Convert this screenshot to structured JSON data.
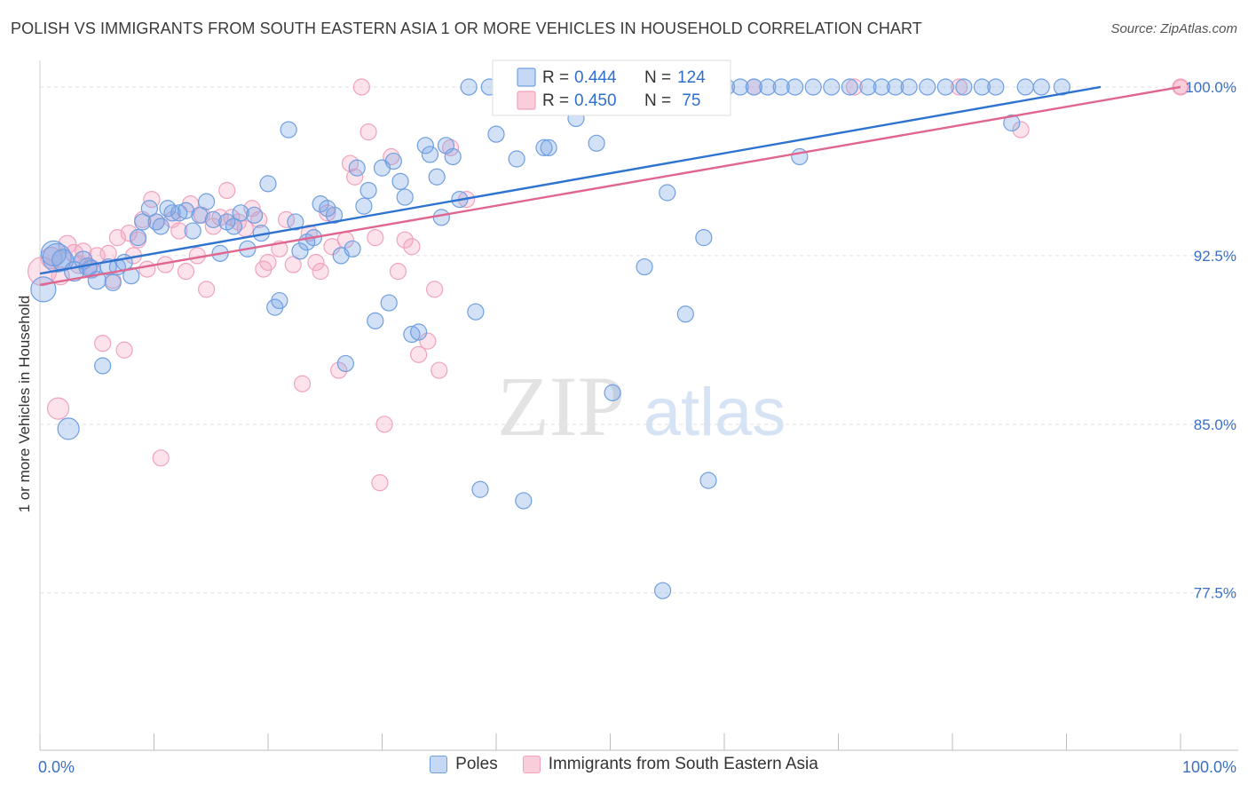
{
  "header": {
    "title": "POLISH VS IMMIGRANTS FROM SOUTH EASTERN ASIA 1 OR MORE VEHICLES IN HOUSEHOLD CORRELATION CHART",
    "source": "Source: ZipAtlas.com"
  },
  "watermark": {
    "zip": "ZIP",
    "atlas": "atlas"
  },
  "chart_data": {
    "type": "scatter",
    "title": "POLISH VS IMMIGRANTS FROM SOUTH EASTERN ASIA 1 OR MORE VEHICLES IN HOUSEHOLD CORRELATION CHART",
    "xlabel": "",
    "ylabel": "1 or more Vehicles in Household",
    "xlim": [
      0,
      100
    ],
    "ylim": [
      70.5,
      101.5
    ],
    "x_tick_labels": [
      "0.0%",
      "100.0%"
    ],
    "y_ticks": [
      77.5,
      85.0,
      92.5,
      100.0
    ],
    "y_tick_labels": [
      "77.5%",
      "85.0%",
      "92.5%",
      "100.0%"
    ],
    "grid": true,
    "legend_position": "top-center",
    "series": [
      {
        "name": "Poles",
        "color": "#6f9fe0",
        "line_color": "#2f73d0",
        "R": "0.444",
        "N": "124",
        "trend": {
          "x": [
            0,
            93
          ],
          "y": [
            91.7,
            100.0
          ]
        },
        "points": [
          [
            0.3,
            91.0,
            14
          ],
          [
            1.2,
            92.6,
            14
          ],
          [
            1.5,
            92.4,
            16
          ],
          [
            2.0,
            92.3,
            12
          ],
          [
            2.5,
            84.8,
            12
          ],
          [
            3.0,
            91.8,
            11
          ],
          [
            3.8,
            92.3,
            10
          ],
          [
            4.2,
            92.0,
            10
          ],
          [
            4.5,
            91.9,
            10
          ],
          [
            5.0,
            91.4,
            10
          ],
          [
            5.5,
            87.6,
            9
          ],
          [
            6.0,
            92.0,
            9
          ],
          [
            6.4,
            91.3,
            9
          ],
          [
            6.8,
            92.0,
            9
          ],
          [
            7.4,
            92.2,
            9
          ],
          [
            8.0,
            91.6,
            9
          ],
          [
            8.6,
            93.3,
            9
          ],
          [
            9.0,
            94.0,
            9
          ],
          [
            9.6,
            94.6,
            9
          ],
          [
            10.2,
            94.0,
            9
          ],
          [
            10.6,
            93.8,
            9
          ],
          [
            11.2,
            94.6,
            9
          ],
          [
            11.6,
            94.4,
            9
          ],
          [
            12.2,
            94.4,
            9
          ],
          [
            12.8,
            94.5,
            9
          ],
          [
            13.4,
            93.6,
            9
          ],
          [
            14.0,
            94.3,
            9
          ],
          [
            14.6,
            94.9,
            9
          ],
          [
            15.2,
            94.1,
            9
          ],
          [
            15.8,
            92.6,
            9
          ],
          [
            16.4,
            94.0,
            9
          ],
          [
            17.0,
            93.8,
            9
          ],
          [
            17.6,
            94.4,
            9
          ],
          [
            18.2,
            92.8,
            9
          ],
          [
            18.8,
            94.3,
            9
          ],
          [
            19.4,
            93.5,
            9
          ],
          [
            20.0,
            95.7,
            9
          ],
          [
            20.6,
            90.2,
            9
          ],
          [
            21.0,
            90.5,
            9
          ],
          [
            21.8,
            98.1,
            9
          ],
          [
            22.4,
            94.0,
            9
          ],
          [
            22.8,
            92.7,
            9
          ],
          [
            23.4,
            93.1,
            9
          ],
          [
            24.0,
            93.3,
            9
          ],
          [
            24.6,
            94.8,
            9
          ],
          [
            25.2,
            94.6,
            9
          ],
          [
            25.8,
            94.3,
            9
          ],
          [
            26.4,
            92.5,
            9
          ],
          [
            26.8,
            87.7,
            9
          ],
          [
            27.4,
            92.8,
            9
          ],
          [
            27.8,
            96.4,
            9
          ],
          [
            28.4,
            94.7,
            9
          ],
          [
            28.8,
            95.4,
            9
          ],
          [
            29.4,
            89.6,
            9
          ],
          [
            30.0,
            96.4,
            9
          ],
          [
            30.6,
            90.4,
            9
          ],
          [
            31.0,
            96.7,
            9
          ],
          [
            31.6,
            95.8,
            9
          ],
          [
            32.0,
            95.1,
            9
          ],
          [
            32.6,
            89.0,
            9
          ],
          [
            33.2,
            89.1,
            9
          ],
          [
            33.8,
            97.4,
            9
          ],
          [
            34.2,
            97.0,
            9
          ],
          [
            34.8,
            96.0,
            9
          ],
          [
            35.2,
            94.2,
            9
          ],
          [
            35.6,
            97.4,
            9
          ],
          [
            36.2,
            96.9,
            9
          ],
          [
            36.8,
            95.0,
            9
          ],
          [
            37.6,
            100.0,
            9
          ],
          [
            38.2,
            90.0,
            9
          ],
          [
            38.6,
            82.1,
            9
          ],
          [
            39.4,
            100.0,
            9
          ],
          [
            40.0,
            97.9,
            9
          ],
          [
            40.6,
            100.0,
            9
          ],
          [
            41.2,
            100.0,
            9
          ],
          [
            41.8,
            96.8,
            9
          ],
          [
            42.4,
            81.6,
            9
          ],
          [
            43.0,
            99.7,
            9
          ],
          [
            43.6,
            100.0,
            9
          ],
          [
            44.2,
            97.3,
            9
          ],
          [
            44.6,
            97.3,
            9
          ],
          [
            45.2,
            100.0,
            9
          ],
          [
            45.8,
            100.0,
            9
          ],
          [
            46.4,
            100.0,
            9
          ],
          [
            47.0,
            98.6,
            9
          ],
          [
            48.2,
            100.0,
            9
          ],
          [
            48.8,
            97.5,
            9
          ],
          [
            49.4,
            100.0,
            9
          ],
          [
            50.2,
            86.4,
            9
          ],
          [
            51.0,
            100.0,
            9
          ],
          [
            51.8,
            100.0,
            9
          ],
          [
            52.6,
            100.0,
            9
          ],
          [
            53.0,
            92.0,
            9
          ],
          [
            53.8,
            100.0,
            9
          ],
          [
            54.6,
            77.6,
            9
          ],
          [
            55.0,
            95.3,
            9
          ],
          [
            55.8,
            100.0,
            9
          ],
          [
            56.6,
            89.9,
            9
          ],
          [
            57.4,
            100.0,
            9
          ],
          [
            58.2,
            93.3,
            9
          ],
          [
            58.6,
            82.5,
            9
          ],
          [
            59.4,
            100.0,
            9
          ],
          [
            60.2,
            100.0,
            9
          ],
          [
            61.4,
            100.0,
            9
          ],
          [
            62.6,
            100.0,
            9
          ],
          [
            63.8,
            100.0,
            9
          ],
          [
            65.0,
            100.0,
            9
          ],
          [
            66.2,
            100.0,
            9
          ],
          [
            66.6,
            96.9,
            9
          ],
          [
            67.8,
            100.0,
            9
          ],
          [
            69.4,
            100.0,
            9
          ],
          [
            71.0,
            100.0,
            9
          ],
          [
            72.6,
            100.0,
            9
          ],
          [
            73.8,
            100.0,
            9
          ],
          [
            75.0,
            100.0,
            9
          ],
          [
            76.2,
            100.0,
            9
          ],
          [
            77.8,
            100.0,
            9
          ],
          [
            79.4,
            100.0,
            9
          ],
          [
            81.0,
            100.0,
            9
          ],
          [
            82.6,
            100.0,
            9
          ],
          [
            83.8,
            100.0,
            9
          ],
          [
            85.2,
            98.4,
            9
          ],
          [
            86.4,
            100.0,
            9
          ],
          [
            87.8,
            100.0,
            9
          ],
          [
            89.6,
            100.0,
            9
          ]
        ]
      },
      {
        "name": "Immigrants from South Eastern Asia",
        "color": "#f0a3bd",
        "line_color": "#e0668f",
        "R": "0.450",
        "N": "75",
        "trend": {
          "x": [
            0,
            100
          ],
          "y": [
            91.2,
            100.0
          ]
        },
        "points": [
          [
            0.2,
            91.8,
            16
          ],
          [
            1.0,
            92.4,
            12
          ],
          [
            1.6,
            85.7,
            12
          ],
          [
            1.8,
            91.6,
            10
          ],
          [
            2.4,
            93.0,
            10
          ],
          [
            3.0,
            92.6,
            10
          ],
          [
            3.4,
            92.1,
            10
          ],
          [
            3.8,
            92.7,
            9
          ],
          [
            4.4,
            92.0,
            9
          ],
          [
            5.0,
            92.5,
            9
          ],
          [
            5.5,
            88.6,
            9
          ],
          [
            6.0,
            92.6,
            9
          ],
          [
            6.4,
            91.4,
            9
          ],
          [
            6.8,
            93.3,
            9
          ],
          [
            7.4,
            88.3,
            9
          ],
          [
            7.8,
            93.5,
            9
          ],
          [
            8.2,
            92.5,
            9
          ],
          [
            8.6,
            93.2,
            9
          ],
          [
            9.0,
            94.1,
            9
          ],
          [
            9.4,
            91.9,
            9
          ],
          [
            9.8,
            95.0,
            9
          ],
          [
            10.2,
            94.0,
            9
          ],
          [
            10.6,
            83.5,
            9
          ],
          [
            11.0,
            92.1,
            9
          ],
          [
            11.6,
            94.1,
            9
          ],
          [
            12.2,
            93.6,
            9
          ],
          [
            12.8,
            91.8,
            9
          ],
          [
            13.2,
            94.8,
            9
          ],
          [
            13.8,
            92.5,
            9
          ],
          [
            14.2,
            94.3,
            9
          ],
          [
            14.6,
            91.0,
            9
          ],
          [
            15.2,
            93.8,
            9
          ],
          [
            15.8,
            94.2,
            9
          ],
          [
            16.4,
            95.4,
            9
          ],
          [
            16.8,
            94.2,
            9
          ],
          [
            17.4,
            94.0,
            9
          ],
          [
            18.0,
            93.7,
            9
          ],
          [
            18.6,
            94.6,
            9
          ],
          [
            19.2,
            94.1,
            9
          ],
          [
            19.6,
            91.9,
            9
          ],
          [
            20.0,
            92.2,
            9
          ],
          [
            21.0,
            92.8,
            9
          ],
          [
            21.6,
            94.1,
            9
          ],
          [
            22.2,
            92.1,
            9
          ],
          [
            23.0,
            86.8,
            9
          ],
          [
            23.6,
            93.5,
            9
          ],
          [
            24.2,
            92.2,
            9
          ],
          [
            24.6,
            91.8,
            9
          ],
          [
            25.2,
            94.4,
            9
          ],
          [
            25.6,
            92.9,
            9
          ],
          [
            26.2,
            87.4,
            9
          ],
          [
            26.8,
            93.2,
            9
          ],
          [
            27.2,
            96.6,
            9
          ],
          [
            27.6,
            96.0,
            9
          ],
          [
            28.2,
            100.0,
            9
          ],
          [
            28.8,
            98.0,
            9
          ],
          [
            29.4,
            93.3,
            9
          ],
          [
            29.8,
            82.4,
            9
          ],
          [
            30.2,
            85.0,
            9
          ],
          [
            30.8,
            96.9,
            9
          ],
          [
            31.4,
            91.8,
            9
          ],
          [
            32.0,
            93.2,
            9
          ],
          [
            32.6,
            92.9,
            9
          ],
          [
            33.2,
            88.1,
            9
          ],
          [
            34.0,
            88.7,
            9
          ],
          [
            34.6,
            91.0,
            9
          ],
          [
            35.0,
            87.4,
            9
          ],
          [
            36.0,
            97.3,
            9
          ],
          [
            37.4,
            95.0,
            9
          ],
          [
            62.6,
            100.0,
            9
          ],
          [
            71.4,
            100.0,
            9
          ],
          [
            80.6,
            100.0,
            9
          ],
          [
            86.0,
            98.1,
            9
          ],
          [
            100.0,
            100.0,
            9
          ],
          [
            100.0,
            100.0,
            8
          ]
        ]
      }
    ]
  },
  "legend": {
    "rows": [
      {
        "r_label": "R = ",
        "r_value": "0.444",
        "n_label": "N = ",
        "n_value": "124"
      },
      {
        "r_label": "R = ",
        "r_value": "0.450",
        "n_label": "N = ",
        "n_value": " 75"
      }
    ]
  },
  "bottom_legend": [
    {
      "label": "Poles"
    },
    {
      "label": "Immigrants from South Eastern Asia"
    }
  ]
}
